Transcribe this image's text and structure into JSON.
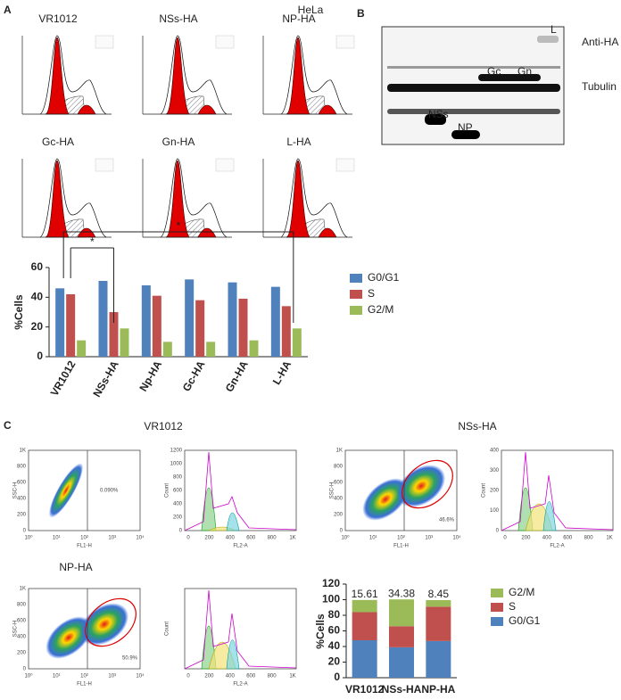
{
  "panels": {
    "a": "A",
    "b": "B",
    "c": "C"
  },
  "panel_a": {
    "title": "HeLa",
    "histograms": [
      "VR1012",
      "NSs-HA",
      "NP-HA",
      "Gc-HA",
      "Gn-HA",
      "L-HA"
    ]
  },
  "blot": {
    "bands": {
      "l": "L",
      "gc": "Gc",
      "gn": "Gn",
      "nss": "NSs",
      "np": "NP"
    },
    "rows": [
      "Anti-HA",
      "Tubulin"
    ]
  },
  "panel_c": {
    "scatter_axes": {
      "x": "FL1-H",
      "y": "SSC-H",
      "xticks": [
        "10⁰",
        "10¹",
        "10²",
        "10³",
        "10⁴"
      ],
      "yticks": [
        "0",
        "200",
        "400",
        "600",
        "800",
        "1K"
      ]
    },
    "histogram_axes": {
      "x": "FL2-A",
      "y": "Count",
      "xticks": [
        "0",
        "200",
        "400",
        "600",
        "800",
        "1K"
      ]
    },
    "samples": [
      {
        "name": "VR1012",
        "gate_percent": "0.090%",
        "hist_yticks": [
          "0",
          "200",
          "400",
          "600",
          "800",
          "1000",
          "1200"
        ]
      },
      {
        "name": "NSs-HA",
        "gate_percent": "46.6%",
        "hist_yticks": [
          "0",
          "100",
          "200",
          "300",
          "400"
        ]
      },
      {
        "name": "NP-HA",
        "gate_percent": "50.9%"
      }
    ]
  },
  "chart_data": [
    {
      "type": "bar",
      "y_label": "%Cells",
      "categories": [
        "VR1012",
        "NSs-HA",
        "Np-HA",
        "Gc-HA",
        "Gn-HA",
        "L-HA"
      ],
      "series": [
        {
          "name": "G0/G1",
          "color": "#4f81bd",
          "values": [
            46,
            51,
            48,
            52,
            50,
            47
          ]
        },
        {
          "name": "S",
          "color": "#c0504d",
          "values": [
            42,
            30,
            41,
            38,
            39,
            34
          ]
        },
        {
          "name": "G2/M",
          "color": "#9bbb59",
          "values": [
            11,
            19,
            10,
            10,
            11,
            19
          ]
        }
      ],
      "ylim": [
        0,
        60
      ],
      "yticks": [
        0,
        20,
        40,
        60
      ],
      "annotations": [
        "*",
        "*"
      ]
    },
    {
      "type": "stacked_bar",
      "y_label": "%Cells",
      "categories": [
        "VR1012",
        "NSs-HA",
        "NP-HA"
      ],
      "series": [
        {
          "name": "G0/G1",
          "color": "#4f81bd",
          "values": [
            48,
            39,
            47
          ]
        },
        {
          "name": "S",
          "color": "#c0504d",
          "values": [
            36,
            27,
            44
          ]
        },
        {
          "name": "G2/M",
          "color": "#9bbb59",
          "values": [
            15.61,
            34.38,
            8.45
          ],
          "value_labels": [
            "15.61",
            "34.38",
            "8.45"
          ]
        }
      ],
      "ylim": [
        0,
        120
      ],
      "yticks": [
        0,
        20,
        40,
        60,
        80,
        100,
        120
      ]
    }
  ]
}
